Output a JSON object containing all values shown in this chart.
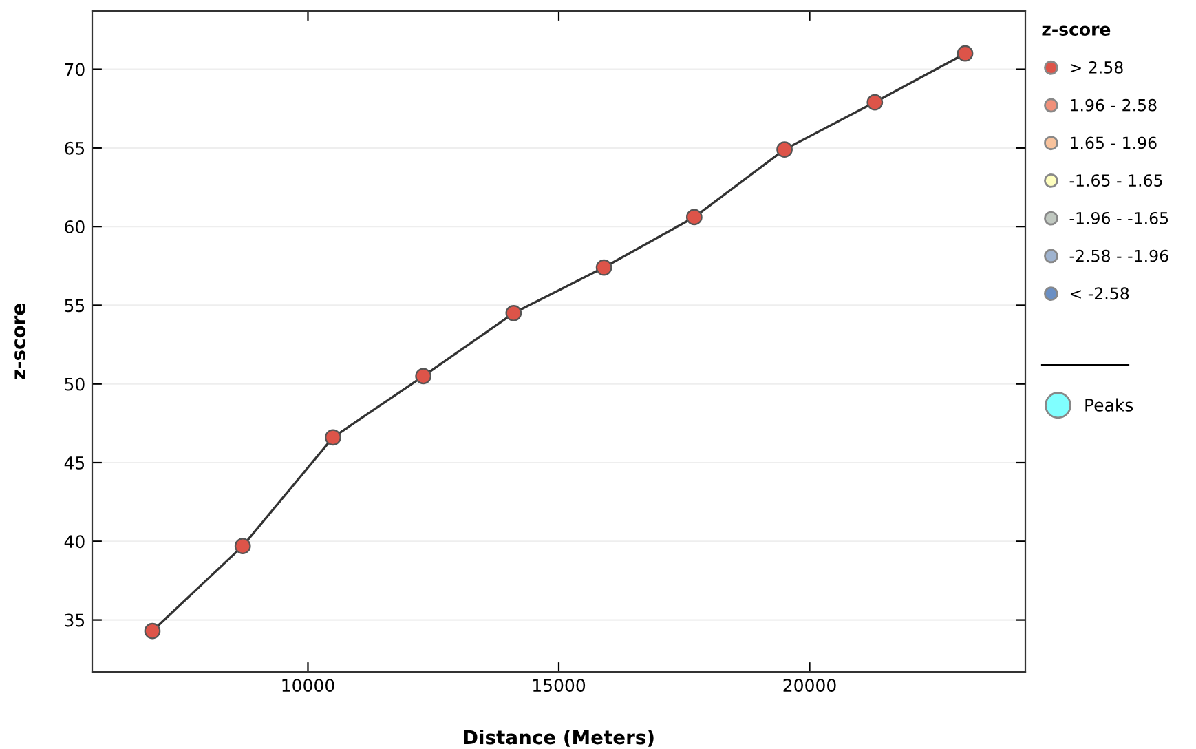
{
  "chart_data": {
    "type": "scatter",
    "xlabel": "Distance (Meters)",
    "ylabel": "z-score",
    "legend_title": "z-score",
    "legend": "right",
    "grid": "y",
    "x": [
      6900,
      8700,
      10500,
      12300,
      14100,
      15900,
      17700,
      19500,
      21300,
      23100
    ],
    "xlim": [
      5700,
      24300
    ],
    "xticks": [
      10000,
      15000,
      20000
    ],
    "ylim": [
      31.7,
      73.7
    ],
    "yticks": [
      35,
      40,
      45,
      50,
      55,
      60,
      65,
      70
    ],
    "series": [
      {
        "type": "line",
        "color": "#333333",
        "values": [
          34.3,
          39.7,
          46.6,
          50.5,
          54.5,
          57.4,
          60.6,
          64.9,
          67.9,
          71.0
        ]
      },
      {
        "name": "> 2.58",
        "marker": "circle",
        "color": "#dd5449",
        "values": [
          34.3,
          39.7,
          46.6,
          50.5,
          54.5,
          57.4,
          60.6,
          64.9,
          67.9,
          71.0
        ]
      },
      {
        "name": "1.96 - 2.58",
        "color": "#f0907a",
        "values": [
          null,
          null,
          null,
          null,
          null,
          null,
          null,
          null,
          null,
          null
        ]
      },
      {
        "name": "1.65 - 1.96",
        "color": "#f8c29c",
        "values": [
          null,
          null,
          null,
          null,
          null,
          null,
          null,
          null,
          null,
          null
        ]
      },
      {
        "name": "-1.65 - 1.65",
        "color": "#ffffbf",
        "values": [
          null,
          null,
          null,
          null,
          null,
          null,
          null,
          null,
          null,
          null
        ]
      },
      {
        "name": "-1.96 - -1.65",
        "color": "#c0c8c0",
        "values": [
          null,
          null,
          null,
          null,
          null,
          null,
          null,
          null,
          null,
          null
        ]
      },
      {
        "name": "-2.58 - -1.96",
        "color": "#9fb3cf",
        "values": [
          null,
          null,
          null,
          null,
          null,
          null,
          null,
          null,
          null,
          null
        ]
      },
      {
        "name": "< -2.58",
        "color": "#6a8fc4",
        "values": [
          null,
          null,
          null,
          null,
          null,
          null,
          null,
          null,
          null,
          null
        ]
      },
      {
        "name": "Peaks",
        "color": "#80ffff",
        "values": [
          null,
          null,
          null,
          null,
          null,
          null,
          null,
          null,
          null,
          null
        ]
      }
    ]
  }
}
